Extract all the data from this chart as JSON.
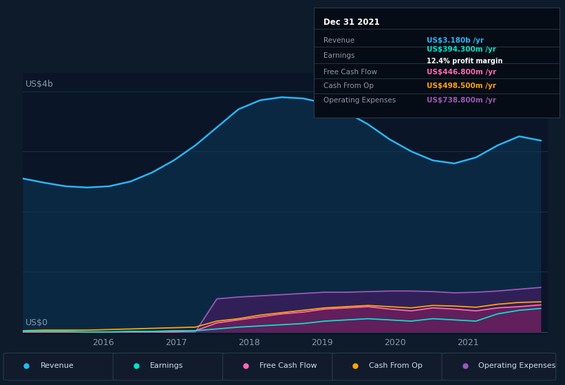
{
  "bg_color": "#0d1b2a",
  "plot_bg_color": "#0a1628",
  "title_date": "Dec 31 2021",
  "ylabel_top": "US$4b",
  "ylabel_bottom": "US$0",
  "xticklabels": [
    "2016",
    "2017",
    "2018",
    "2019",
    "2020",
    "2021"
  ],
  "legend": [
    {
      "label": "Revenue",
      "color": "#29b6f6"
    },
    {
      "label": "Earnings",
      "color": "#00e5cc"
    },
    {
      "label": "Free Cash Flow",
      "color": "#ff69b4"
    },
    {
      "label": "Cash From Op",
      "color": "#ffa500"
    },
    {
      "label": "Operating Expenses",
      "color": "#9b59b6"
    }
  ],
  "revenue": [
    2.55,
    2.48,
    2.42,
    2.4,
    2.42,
    2.5,
    2.65,
    2.85,
    3.1,
    3.4,
    3.7,
    3.85,
    3.9,
    3.88,
    3.8,
    3.65,
    3.45,
    3.2,
    3.0,
    2.85,
    2.8,
    2.9,
    3.1,
    3.25,
    3.18
  ],
  "operating_expenses": [
    0.0,
    0.0,
    0.0,
    0.0,
    0.0,
    0.0,
    0.0,
    0.0,
    0.0,
    0.55,
    0.58,
    0.6,
    0.62,
    0.64,
    0.66,
    0.66,
    0.67,
    0.68,
    0.68,
    0.67,
    0.65,
    0.66,
    0.68,
    0.71,
    0.74
  ],
  "free_cash_flow": [
    0.0,
    0.0,
    0.0,
    0.0,
    0.0,
    0.0,
    0.0,
    0.0,
    0.02,
    0.15,
    0.2,
    0.25,
    0.3,
    0.33,
    0.38,
    0.4,
    0.42,
    0.38,
    0.35,
    0.4,
    0.38,
    0.35,
    0.4,
    0.42,
    0.45
  ],
  "cash_from_op": [
    0.02,
    0.03,
    0.03,
    0.03,
    0.04,
    0.05,
    0.06,
    0.07,
    0.08,
    0.18,
    0.22,
    0.28,
    0.32,
    0.36,
    0.4,
    0.42,
    0.44,
    0.42,
    0.4,
    0.44,
    0.43,
    0.41,
    0.46,
    0.49,
    0.5
  ],
  "earnings": [
    0.01,
    0.01,
    0.01,
    0.0,
    0.0,
    0.01,
    0.01,
    0.02,
    0.02,
    0.05,
    0.08,
    0.1,
    0.12,
    0.14,
    0.18,
    0.2,
    0.22,
    0.2,
    0.18,
    0.22,
    0.2,
    0.18,
    0.3,
    0.36,
    0.39
  ],
  "info_rows": [
    {
      "label": "Revenue",
      "value": "US$3.180b /yr",
      "color": "#29b6f6",
      "sub": null
    },
    {
      "label": "Earnings",
      "value": "US$394.300m /yr",
      "color": "#00e5cc",
      "sub": "12.4% profit margin"
    },
    {
      "label": "Free Cash Flow",
      "value": "US$446.800m /yr",
      "color": "#ff69b4",
      "sub": null
    },
    {
      "label": "Cash From Op",
      "value": "US$498.500m /yr",
      "color": "#ffa500",
      "sub": null
    },
    {
      "label": "Operating Expenses",
      "value": "US$738.800m /yr",
      "color": "#9b59b6",
      "sub": null
    }
  ]
}
